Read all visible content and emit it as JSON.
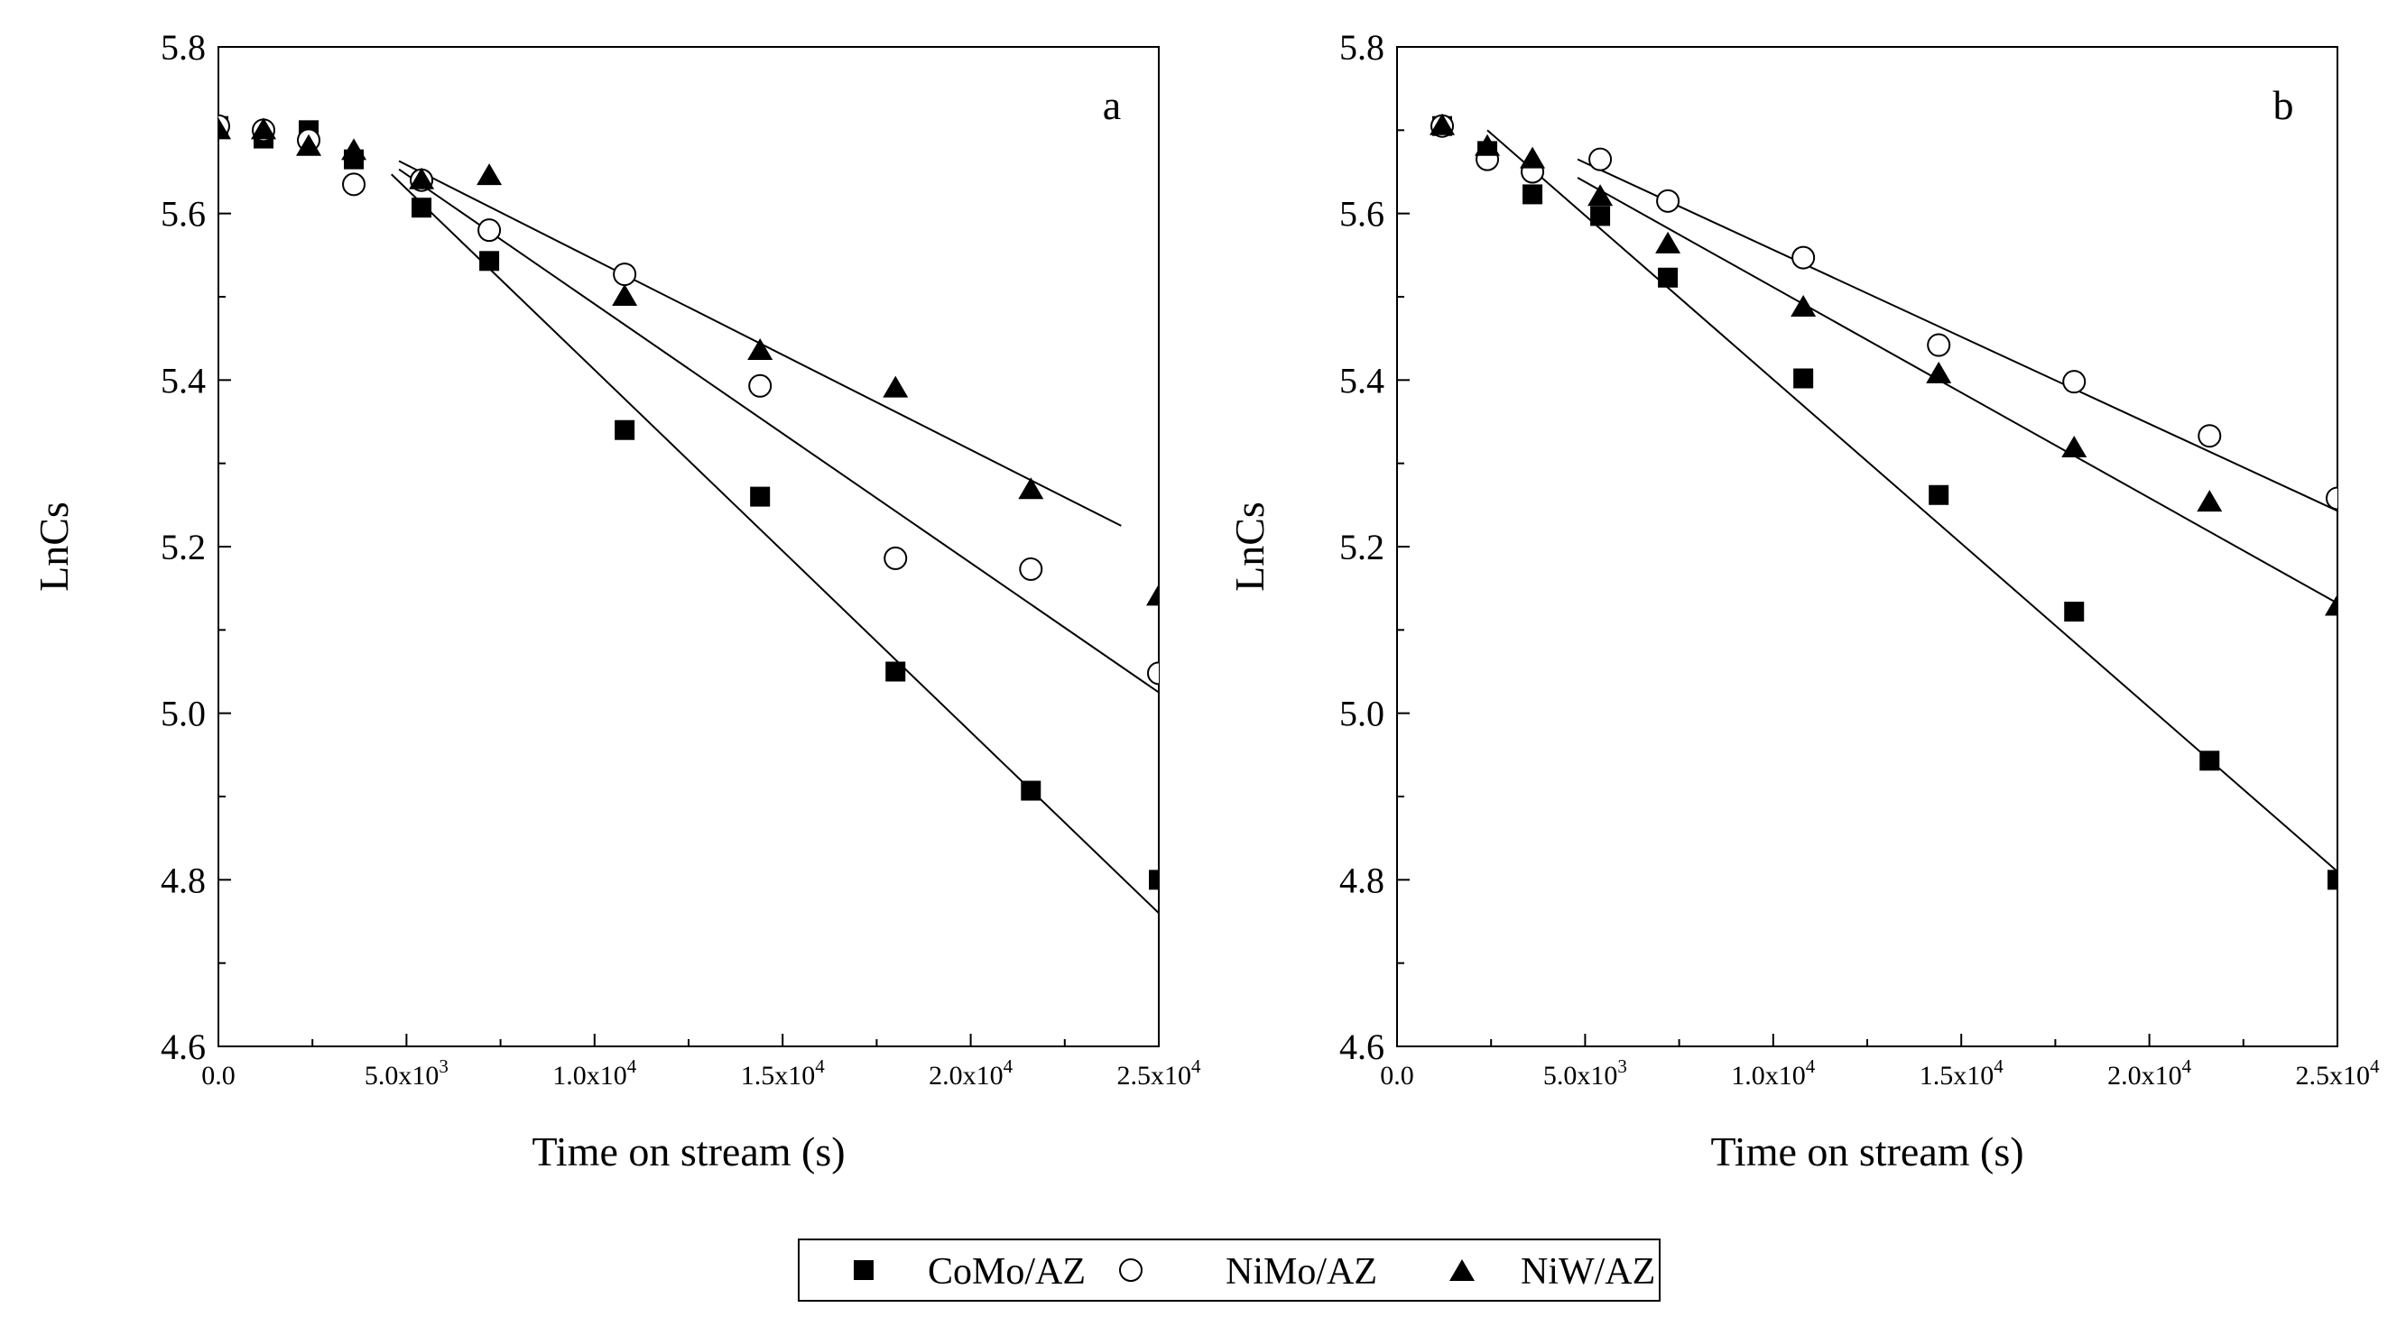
{
  "figure": {
    "legend": [
      {
        "series": "CoMo/AZ",
        "marker": "filled-square"
      },
      {
        "series": "NiMo/AZ",
        "marker": "open-circle"
      },
      {
        "series": "NiW/AZ",
        "marker": "filled-triangle"
      }
    ]
  },
  "chart_data": [
    {
      "type": "scatter",
      "panel_label": "a",
      "xlabel": "Time on stream (s)",
      "ylabel": "LnCs",
      "xlim": [
        0,
        25000
      ],
      "ylim": [
        4.6,
        5.8
      ],
      "x_ticks": [
        {
          "base": "0.0",
          "exp": ""
        },
        {
          "base": "5.0x10",
          "exp": "3"
        },
        {
          "base": "1.0x10",
          "exp": "4"
        },
        {
          "base": "1.5x10",
          "exp": "4"
        },
        {
          "base": "2.0x10",
          "exp": "4"
        },
        {
          "base": "2.5x10",
          "exp": "4"
        }
      ],
      "y_ticks": [
        "4.6",
        "4.8",
        "5.0",
        "5.2",
        "5.4",
        "5.6",
        "5.8"
      ],
      "series": [
        {
          "name": "CoMo/AZ",
          "marker": "square",
          "x": [
            0,
            1200,
            2400,
            3600,
            5400,
            7200,
            10800,
            14400,
            18000,
            21600,
            25000
          ],
          "y": [
            5.705,
            5.69,
            5.7,
            5.665,
            5.607,
            5.543,
            5.34,
            5.26,
            5.05,
            4.907,
            4.8
          ],
          "fit": {
            "x": [
              4600,
              25000
            ],
            "y": [
              5.647,
              4.76
            ]
          }
        },
        {
          "name": "NiMo/AZ",
          "marker": "circle",
          "x": [
            0,
            1200,
            2400,
            3600,
            5400,
            7200,
            10800,
            14400,
            18000,
            21600,
            25000
          ],
          "y": [
            5.705,
            5.7,
            5.688,
            5.635,
            5.64,
            5.58,
            5.527,
            5.393,
            5.186,
            5.173,
            5.048
          ],
          "fit": {
            "x": [
              4800,
              25000
            ],
            "y": [
              5.653,
              5.025
            ]
          }
        },
        {
          "name": "NiW/AZ",
          "marker": "triangle",
          "x": [
            0,
            1200,
            2400,
            3600,
            5400,
            7200,
            10800,
            14400,
            18000,
            21600,
            25000
          ],
          "y": [
            5.7,
            5.7,
            5.68,
            5.675,
            5.64,
            5.645,
            5.5,
            5.435,
            5.39,
            5.268,
            5.14
          ],
          "fit": {
            "x": [
              4800,
              24000
            ],
            "y": [
              5.663,
              5.225
            ]
          }
        }
      ]
    },
    {
      "type": "scatter",
      "panel_label": "b",
      "xlabel": "Time on stream (s)",
      "ylabel": "LnCs",
      "xlim": [
        0,
        25000
      ],
      "ylim": [
        4.6,
        5.8
      ],
      "x_ticks": [
        {
          "base": "0.0",
          "exp": ""
        },
        {
          "base": "5.0x10",
          "exp": "3"
        },
        {
          "base": "1.0x10",
          "exp": "4"
        },
        {
          "base": "1.5x10",
          "exp": "4"
        },
        {
          "base": "2.0x10",
          "exp": "4"
        },
        {
          "base": "2.5x10",
          "exp": "4"
        }
      ],
      "y_ticks": [
        "4.6",
        "4.8",
        "5.0",
        "5.2",
        "5.4",
        "5.6",
        "5.8"
      ],
      "series": [
        {
          "name": "CoMo/AZ",
          "marker": "square",
          "x": [
            1200,
            2400,
            3600,
            5400,
            7200,
            10800,
            14400,
            18000,
            21600,
            25000
          ],
          "y": [
            5.705,
            5.675,
            5.623,
            5.597,
            5.523,
            5.402,
            5.262,
            5.122,
            4.943,
            4.8
          ],
          "fit": {
            "x": [
              2400,
              25000
            ],
            "y": [
              5.7,
              4.81
            ]
          }
        },
        {
          "name": "NiMo/AZ",
          "marker": "circle",
          "x": [
            1200,
            2400,
            3600,
            5400,
            7200,
            10800,
            14400,
            18000,
            21600,
            25000
          ],
          "y": [
            5.705,
            5.665,
            5.65,
            5.665,
            5.615,
            5.547,
            5.442,
            5.398,
            5.333,
            5.258
          ],
          "fit": {
            "x": [
              4800,
              25000
            ],
            "y": [
              5.665,
              5.243
            ]
          }
        },
        {
          "name": "NiW/AZ",
          "marker": "triangle",
          "x": [
            1200,
            2400,
            3600,
            5400,
            7200,
            10800,
            14400,
            18000,
            21600,
            25000
          ],
          "y": [
            5.705,
            5.68,
            5.665,
            5.62,
            5.563,
            5.487,
            5.407,
            5.318,
            5.253,
            5.128
          ],
          "fit": {
            "x": [
              4800,
              25000
            ],
            "y": [
              5.643,
              5.132
            ]
          }
        }
      ]
    }
  ]
}
